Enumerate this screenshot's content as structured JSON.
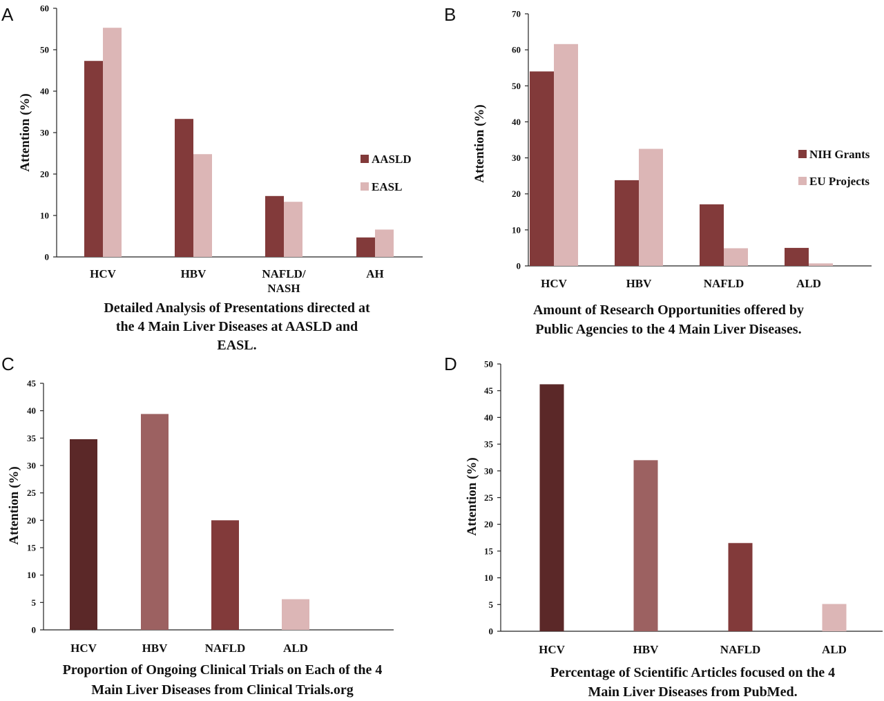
{
  "chart_data": [
    {
      "panel": "A",
      "type": "bar",
      "categories": [
        "HCV",
        "HBV",
        "NAFLD/\nNASH",
        "AH"
      ],
      "series": [
        {
          "name": "AASLD",
          "values": [
            47.3,
            33.3,
            14.7,
            4.7
          ],
          "color": "#823a3a"
        },
        {
          "name": "EASL",
          "values": [
            55.3,
            24.8,
            13.3,
            6.6
          ],
          "color": "#dcb6b6"
        }
      ],
      "ylim": [
        0,
        60
      ],
      "yticks": [
        0,
        10,
        20,
        30,
        40,
        50,
        60
      ],
      "ylabel": "Attention (%)",
      "legend": "right",
      "caption": [
        "Detailed Analysis of Presentations directed at",
        "the 4 Main Liver Diseases  at AASLD and",
        "EASL."
      ]
    },
    {
      "panel": "B",
      "type": "bar",
      "categories": [
        "HCV",
        "HBV",
        "NAFLD",
        "ALD"
      ],
      "series": [
        {
          "name": "NIH Grants",
          "values": [
            54.0,
            23.8,
            17.1,
            5.0
          ],
          "color": "#823a3a"
        },
        {
          "name": "EU Projects",
          "values": [
            61.6,
            32.5,
            4.9,
            0.7
          ],
          "color": "#dcb6b6"
        }
      ],
      "ylim": [
        0,
        70
      ],
      "yticks": [
        0,
        10,
        20,
        30,
        40,
        50,
        60,
        70
      ],
      "ylabel": "Attention (%)",
      "legend": "right",
      "caption": [
        "Amount of Research Opportunities offered by",
        "Public Agencies to the 4 Main Liver Diseases."
      ]
    },
    {
      "panel": "C",
      "type": "bar",
      "categories": [
        "HCV",
        "HBV",
        "NAFLD",
        "ALD"
      ],
      "values": [
        34.8,
        39.4,
        20.0,
        5.6
      ],
      "colors": [
        "#5b2828",
        "#9c6161",
        "#823a3a",
        "#dcb6b6"
      ],
      "ylim": [
        0,
        45
      ],
      "yticks": [
        0,
        5,
        10,
        15,
        20,
        25,
        30,
        35,
        40,
        45
      ],
      "ylabel": "Attention (%)",
      "caption": [
        "Proportion of Ongoing Clinical Trials on Each of the 4",
        "Main Liver Diseases from Clinical Trials.org"
      ]
    },
    {
      "panel": "D",
      "type": "bar",
      "categories": [
        "HCV",
        "HBV",
        "NAFLD",
        "ALD"
      ],
      "values": [
        46.2,
        32.0,
        16.5,
        5.1
      ],
      "colors": [
        "#5b2828",
        "#9c6161",
        "#823a3a",
        "#dcb6b6"
      ],
      "ylim": [
        0,
        50
      ],
      "yticks": [
        0,
        5,
        10,
        15,
        20,
        25,
        30,
        35,
        40,
        45,
        50
      ],
      "ylabel": "Attention (%)",
      "caption": [
        "Percentage of Scientific Articles focused on the 4",
        "Main Liver Diseases from PubMed."
      ]
    }
  ]
}
